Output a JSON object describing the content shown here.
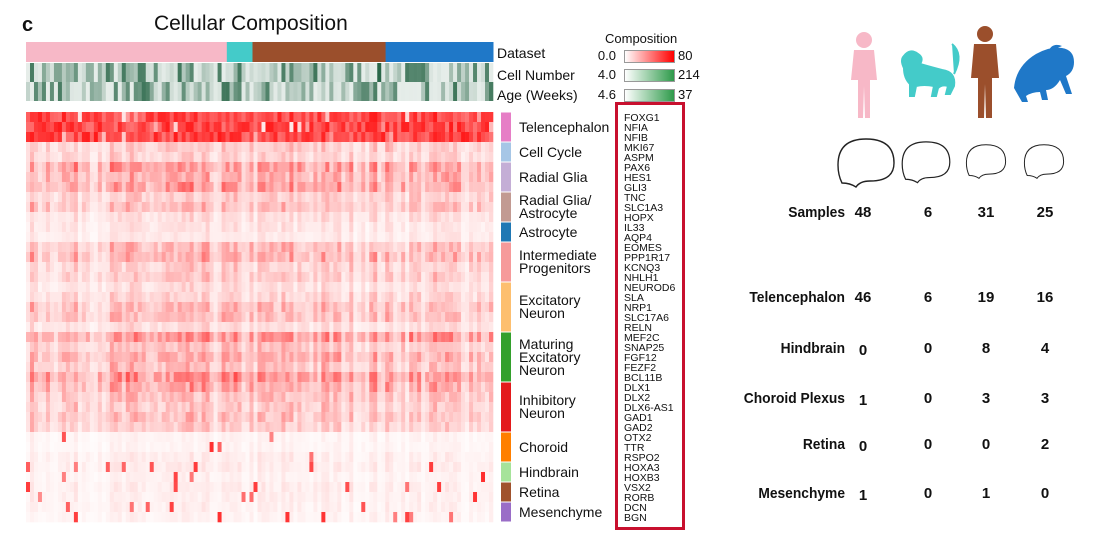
{
  "panel_letter": "c",
  "title": "Cellular Composition",
  "annotation_rows": [
    "Dataset",
    "Cell Number",
    "Age (Weeks)"
  ],
  "composition_title": "Composition",
  "scales": [
    {
      "low": "0.0",
      "high": "80",
      "color": "#ff0000"
    },
    {
      "low": "4.0",
      "high": "214",
      "color": "#2e9a4a"
    },
    {
      "low": "4.6",
      "high": "37",
      "color": "#2e9a4a"
    }
  ],
  "chart_data": {
    "type": "heatmap",
    "dataset_segments": [
      {
        "color": "#f7b8c7",
        "fraction": 0.43
      },
      {
        "color": "#44cbc9",
        "fraction": 0.055
      },
      {
        "color": "#9b4f2c",
        "fraction": 0.285
      },
      {
        "color": "#1f78c8",
        "fraction": 0.23
      }
    ],
    "categories": [
      {
        "label": [
          "Telencephalon"
        ],
        "color": "#e67ec6",
        "genes": [
          "FOXG1",
          "NFIA",
          "NFIB"
        ],
        "intensity": 0.85
      },
      {
        "label": [
          "Cell Cycle"
        ],
        "color": "#a6c6e6",
        "genes": [
          "MKI67",
          "ASPM"
        ],
        "intensity": 0.35
      },
      {
        "label": [
          "Radial Glia"
        ],
        "color": "#c4aed6",
        "genes": [
          "PAX6",
          "HES1",
          "GLI3"
        ],
        "intensity": 0.45
      },
      {
        "label": [
          "Radial Glia/",
          "Astrocyte"
        ],
        "color": "#c29a92",
        "genes": [
          "TNC",
          "SLC1A3",
          "HOPX"
        ],
        "intensity": 0.3
      },
      {
        "label": [
          "Astrocyte"
        ],
        "color": "#1f78b4",
        "genes": [
          "IL33",
          "AQP4"
        ],
        "intensity": 0.15
      },
      {
        "label": [
          "Intermediate",
          "Progenitors"
        ],
        "color": "#f69a9a",
        "genes": [
          "EOMES",
          "PPP1R17",
          "KCNQ3",
          "NHLH1"
        ],
        "intensity": 0.35
      },
      {
        "label": [
          "Excitatory",
          "Neuron"
        ],
        "color": "#fdbf6f",
        "genes": [
          "NEUROD6",
          "SLA",
          "NRP1",
          "SLC17A6",
          "RELN"
        ],
        "intensity": 0.3
      },
      {
        "label": [
          "Maturing",
          "Excitatory",
          "Neuron"
        ],
        "color": "#33a02c",
        "genes": [
          "MEF2C",
          "SNAP25",
          "FGF12",
          "FEZF2",
          "BCL11B"
        ],
        "intensity": 0.55
      },
      {
        "label": [
          "Inhibitory",
          "Neuron"
        ],
        "color": "#e31a1c",
        "genes": [
          "DLX1",
          "DLX2",
          "DLX6-AS1",
          "GAD1",
          "GAD2"
        ],
        "intensity": 0.4
      },
      {
        "label": [
          "Choroid"
        ],
        "color": "#ff7f00",
        "genes": [
          "OTX2",
          "TTR",
          "RSPO2"
        ],
        "intensity": 0.1
      },
      {
        "label": [
          "Hindbrain"
        ],
        "color": "#a6e39a",
        "genes": [
          "HOXA3",
          "HOXB3"
        ],
        "intensity": 0.1
      },
      {
        "label": [
          "Retina"
        ],
        "color": "#a0522d",
        "genes": [
          "VSX2",
          "RORB"
        ],
        "intensity": 0.1
      },
      {
        "label": [
          "Mesenchyme"
        ],
        "color": "#9a6dc7",
        "genes": [
          "DCN",
          "BGN"
        ],
        "intensity": 0.1
      }
    ],
    "species_columns": [
      "human",
      "macaque",
      "chimpanzee",
      "gorilla"
    ],
    "table": {
      "rows": [
        {
          "label": "Samples",
          "values": [
            "48",
            "6",
            "31",
            "25"
          ]
        },
        {
          "label": "Telencephalon",
          "values": [
            "46",
            "6",
            "19",
            "16"
          ]
        },
        {
          "label": "Hindbrain",
          "values": [
            "0",
            "0",
            "8",
            "4"
          ]
        },
        {
          "label": "Choroid Plexus",
          "values": [
            "1",
            "0",
            "3",
            "3"
          ]
        },
        {
          "label": "Retina",
          "values": [
            "0",
            "0",
            "0",
            "2"
          ]
        },
        {
          "label": "Mesenchyme",
          "values": [
            "1",
            "0",
            "1",
            "0"
          ]
        }
      ]
    }
  },
  "species_icons": [
    {
      "name": "human-icon",
      "color": "#f7b8c7"
    },
    {
      "name": "macaque-icon",
      "color": "#44cbc9"
    },
    {
      "name": "chimpanzee-icon",
      "color": "#9b4f2c"
    },
    {
      "name": "gorilla-icon",
      "color": "#1f78c8"
    }
  ]
}
